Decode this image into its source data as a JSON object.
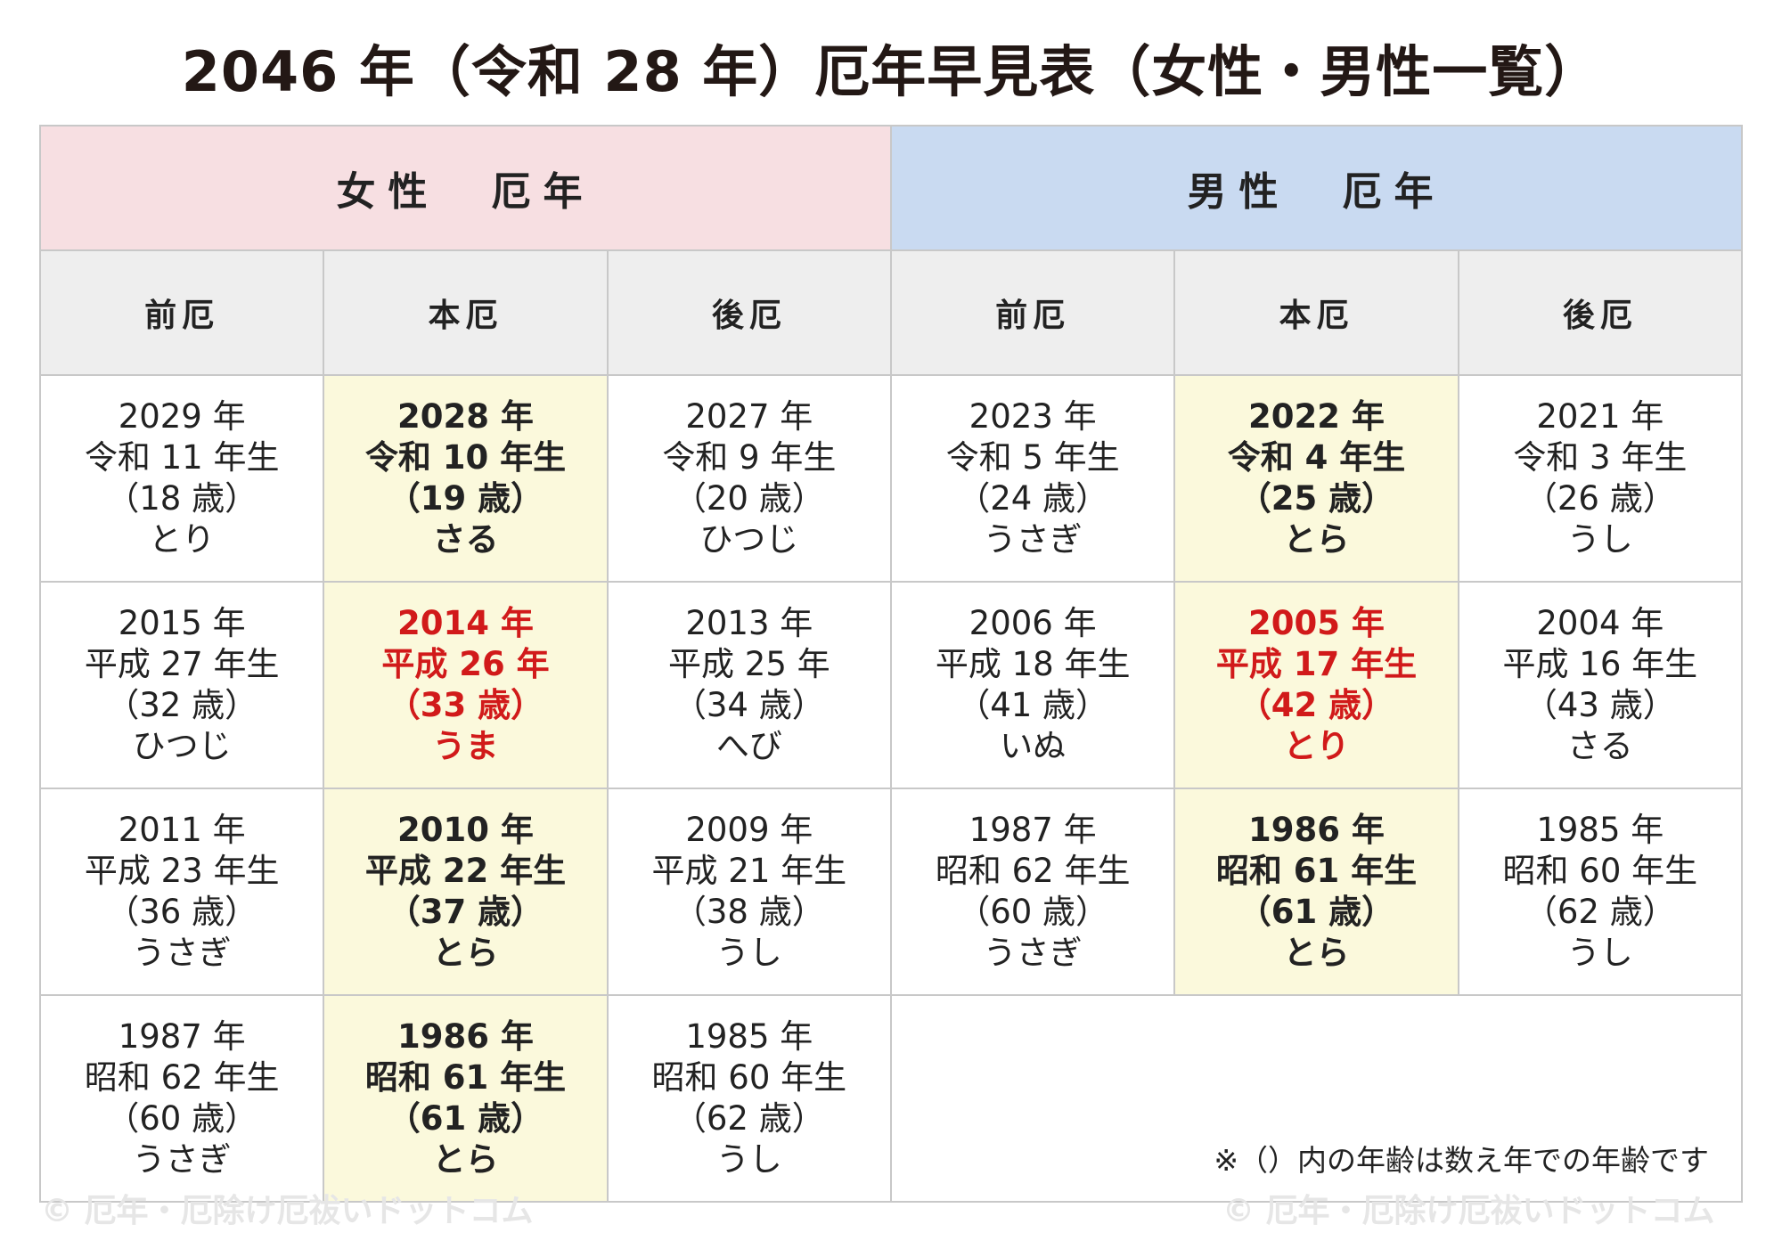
{
  "title": "2046 年（令和 28 年）厄年早見表（女性・男性一覧）",
  "header": {
    "female": "女性　厄年",
    "male": "男性　厄年"
  },
  "columns": [
    "前厄",
    "本厄",
    "後厄",
    "前厄",
    "本厄",
    "後厄"
  ],
  "rows": [
    [
      {
        "year": "2029 年",
        "era": "令和 11 年生",
        "age": "（18 歳）",
        "zodiac": "とり"
      },
      {
        "year": "2028 年",
        "era": "令和 10 年生",
        "age": "（19 歳）",
        "zodiac": "さる"
      },
      {
        "year": "2027 年",
        "era": "令和 9 年生",
        "age": "（20 歳）",
        "zodiac": "ひつじ"
      },
      {
        "year": "2023 年",
        "era": "令和 5 年生",
        "age": "（24 歳）",
        "zodiac": "うさぎ"
      },
      {
        "year": "2022 年",
        "era": "令和 4 年生",
        "age": "（25 歳）",
        "zodiac": "とら"
      },
      {
        "year": "2021 年",
        "era": "令和 3 年生",
        "age": "（26 歳）",
        "zodiac": "うし"
      }
    ],
    [
      {
        "year": "2015 年",
        "era": "平成 27 年生",
        "age": "（32 歳）",
        "zodiac": "ひつじ"
      },
      {
        "year": "2014 年",
        "era": "平成 26 年",
        "age": "（33 歳）",
        "zodiac": "うま"
      },
      {
        "year": "2013 年",
        "era": "平成 25 年",
        "age": "（34 歳）",
        "zodiac": "へび"
      },
      {
        "year": "2006 年",
        "era": "平成 18 年生",
        "age": "（41 歳）",
        "zodiac": "いぬ"
      },
      {
        "year": "2005 年",
        "era": "平成 17 年生",
        "age": "（42 歳）",
        "zodiac": "とり"
      },
      {
        "year": "2004 年",
        "era": "平成 16 年生",
        "age": "（43 歳）",
        "zodiac": "さる"
      }
    ],
    [
      {
        "year": "2011 年",
        "era": "平成 23 年生",
        "age": "（36 歳）",
        "zodiac": "うさぎ"
      },
      {
        "year": "2010 年",
        "era": "平成 22 年生",
        "age": "（37 歳）",
        "zodiac": "とら"
      },
      {
        "year": "2009 年",
        "era": "平成 21 年生",
        "age": "（38 歳）",
        "zodiac": "うし"
      },
      {
        "year": "1987 年",
        "era": "昭和 62 年生",
        "age": "（60 歳）",
        "zodiac": "うさぎ"
      },
      {
        "year": "1986 年",
        "era": "昭和 61 年生",
        "age": "（61 歳）",
        "zodiac": "とら"
      },
      {
        "year": "1985 年",
        "era": "昭和 60 年生",
        "age": "（62 歳）",
        "zodiac": "うし"
      }
    ],
    [
      {
        "year": "1987 年",
        "era": "昭和 62 年生",
        "age": "（60 歳）",
        "zodiac": "うさぎ"
      },
      {
        "year": "1986 年",
        "era": "昭和 61 年生",
        "age": "（61 歳）",
        "zodiac": "とら"
      },
      {
        "year": "1985 年",
        "era": "昭和 60 年生",
        "age": "（62 歳）",
        "zodiac": "うし"
      }
    ]
  ],
  "note": "※（）内の年齢は数え年での年齢です",
  "watermark": "© 厄年・厄除け厄祓いドットコム",
  "colors": {
    "female_header": "#f7dfe2",
    "male_header": "#c9daf1",
    "honyaku": "#fbf9dc",
    "highlight_red": "#d11a1a"
  }
}
